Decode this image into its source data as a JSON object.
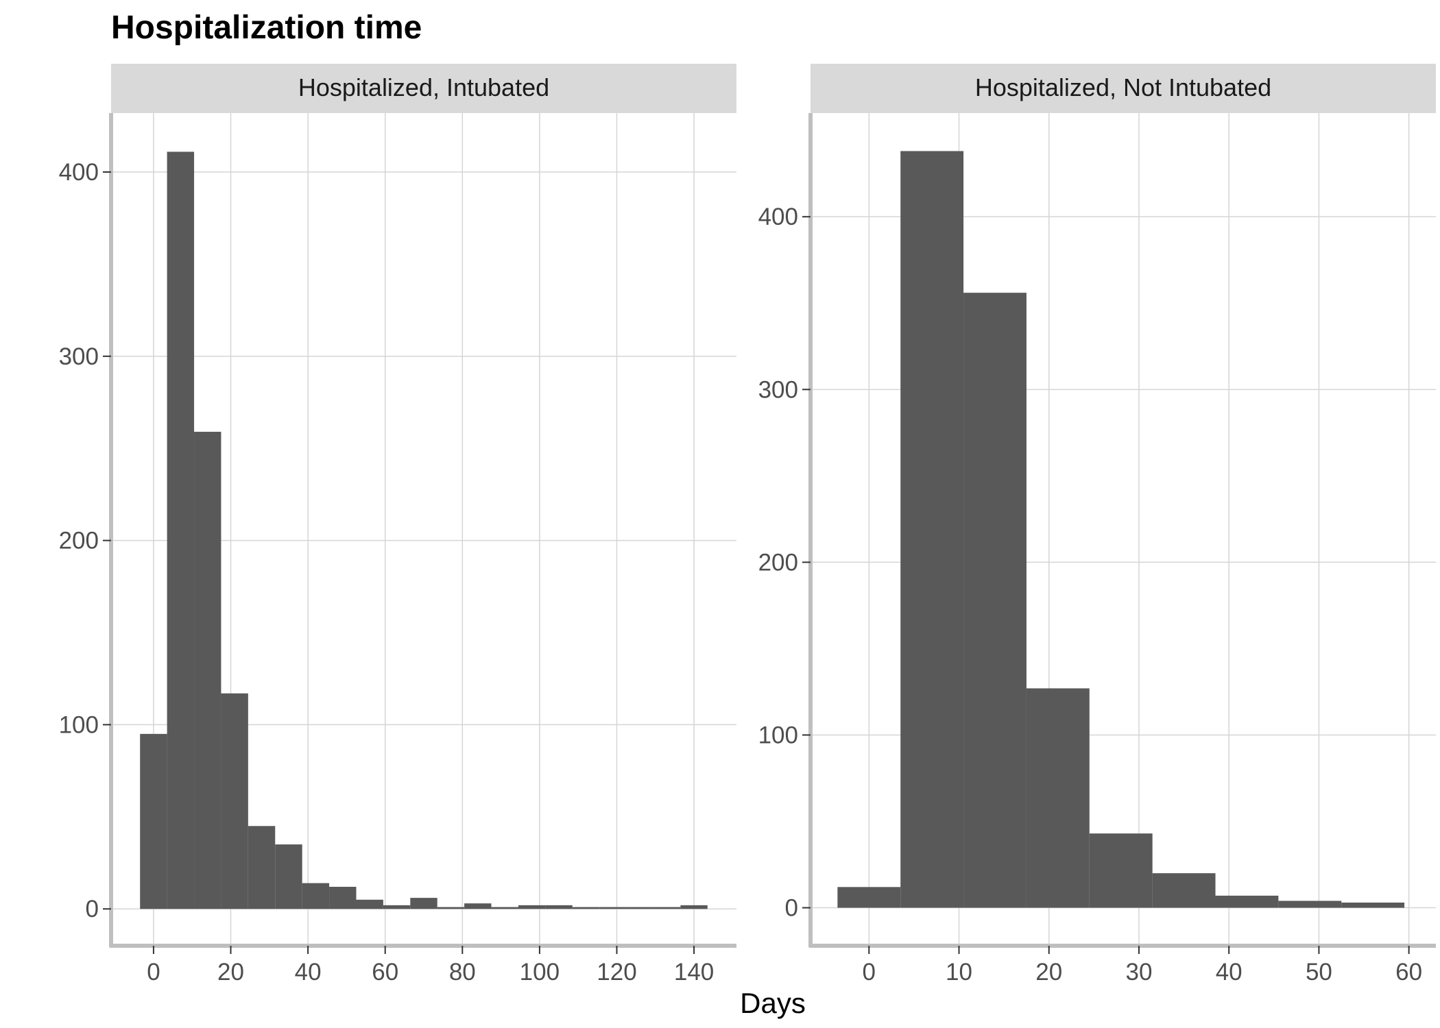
{
  "chart_data": {
    "type": "bar",
    "title": "Hospitalization time",
    "xlabel": "Days",
    "ylabel": "",
    "bar_color": "#595959",
    "strip_color": "#d9d9d9",
    "grid_color": "#d5d5d5",
    "axis_color": "#bfbfbf",
    "grid": true,
    "panels": [
      {
        "strip_label": "Hospitalized, Intubated",
        "xlim": [
          -11,
          151
        ],
        "ylim": [
          -20,
          432
        ],
        "xticks": [
          0,
          20,
          40,
          60,
          80,
          100,
          120,
          140
        ],
        "xtick_labels": [
          "0",
          "20",
          "40",
          "60",
          "80",
          "100",
          "120",
          "140"
        ],
        "yticks": [
          0,
          100,
          200,
          300,
          400
        ],
        "ytick_labels": [
          "0",
          "100",
          "200",
          "300",
          "400"
        ],
        "bin_width": 7,
        "bins": [
          {
            "start": -3.5,
            "end": 3.5,
            "count": 95
          },
          {
            "start": 3.5,
            "end": 10.5,
            "count": 411
          },
          {
            "start": 10.5,
            "end": 17.5,
            "count": 259
          },
          {
            "start": 17.5,
            "end": 24.5,
            "count": 117
          },
          {
            "start": 24.5,
            "end": 31.5,
            "count": 45
          },
          {
            "start": 31.5,
            "end": 38.5,
            "count": 35
          },
          {
            "start": 38.5,
            "end": 45.5,
            "count": 14
          },
          {
            "start": 45.5,
            "end": 52.5,
            "count": 12
          },
          {
            "start": 52.5,
            "end": 59.5,
            "count": 5
          },
          {
            "start": 59.5,
            "end": 66.5,
            "count": 2
          },
          {
            "start": 66.5,
            "end": 73.5,
            "count": 6
          },
          {
            "start": 73.5,
            "end": 80.5,
            "count": 1
          },
          {
            "start": 80.5,
            "end": 87.5,
            "count": 3
          },
          {
            "start": 87.5,
            "end": 94.5,
            "count": 1
          },
          {
            "start": 94.5,
            "end": 101.5,
            "count": 2
          },
          {
            "start": 101.5,
            "end": 108.5,
            "count": 2
          },
          {
            "start": 108.5,
            "end": 115.5,
            "count": 1
          },
          {
            "start": 115.5,
            "end": 122.5,
            "count": 1
          },
          {
            "start": 122.5,
            "end": 129.5,
            "count": 1
          },
          {
            "start": 129.5,
            "end": 136.5,
            "count": 1
          },
          {
            "start": 136.5,
            "end": 143.5,
            "count": 2
          }
        ]
      },
      {
        "strip_label": "Hospitalized, Not Intubated",
        "xlim": [
          -6.5,
          63
        ],
        "ylim": [
          -22,
          460
        ],
        "xticks": [
          0,
          10,
          20,
          30,
          40,
          50,
          60
        ],
        "xtick_labels": [
          "0",
          "10",
          "20",
          "30",
          "40",
          "50",
          "60"
        ],
        "yticks": [
          0,
          100,
          200,
          300,
          400
        ],
        "ytick_labels": [
          "0",
          "100",
          "200",
          "300",
          "400"
        ],
        "bin_width": 7,
        "bins": [
          {
            "start": -3.5,
            "end": 3.5,
            "count": 12
          },
          {
            "start": 3.5,
            "end": 10.5,
            "count": 438
          },
          {
            "start": 10.5,
            "end": 17.5,
            "count": 356
          },
          {
            "start": 17.5,
            "end": 24.5,
            "count": 127
          },
          {
            "start": 24.5,
            "end": 31.5,
            "count": 43
          },
          {
            "start": 31.5,
            "end": 38.5,
            "count": 20
          },
          {
            "start": 38.5,
            "end": 45.5,
            "count": 7
          },
          {
            "start": 45.5,
            "end": 52.5,
            "count": 4
          },
          {
            "start": 52.5,
            "end": 59.5,
            "count": 3
          }
        ]
      }
    ]
  }
}
